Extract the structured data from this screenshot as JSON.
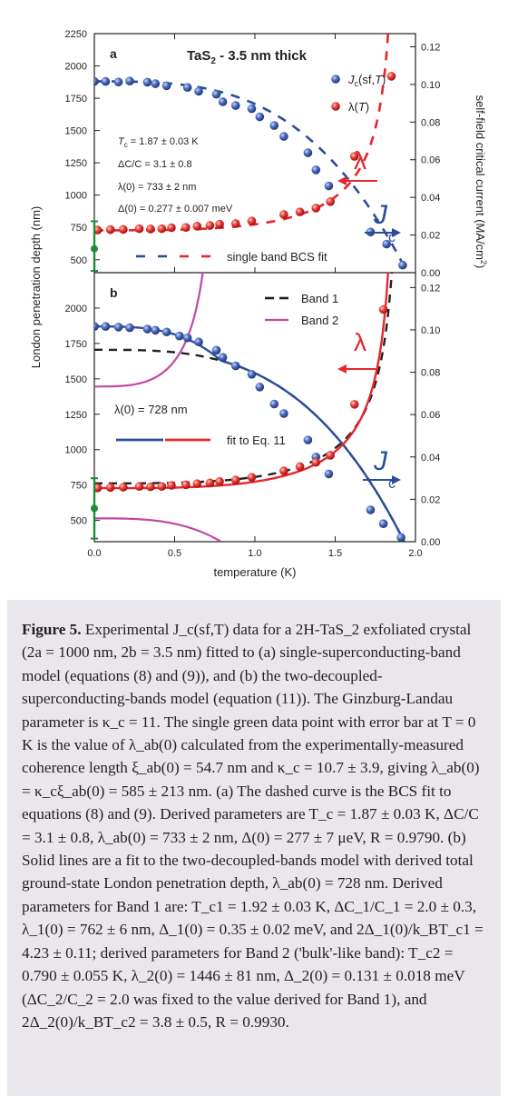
{
  "chart_data": [
    {
      "panel_label": "a",
      "type": "scatter",
      "title": "TaS2 - 3.5 nm thick",
      "title_base": "TaS",
      "title_sub": "2",
      "title_rest": " - 3.5 nm thick",
      "xlabel": "temperature (K)",
      "ylabel": "London penetration depth (nm)",
      "y2label": "self-field critical current (MA/cm2)",
      "y2label_base": "self-field critical current (MA/cm",
      "y2label_sup": "2",
      "y2label_end": ")",
      "xlim": [
        0,
        2.0
      ],
      "ylim": [
        400,
        2250
      ],
      "y2lim": [
        0,
        0.127
      ],
      "yticks": [
        "500",
        "750",
        "1000",
        "1250",
        "1500",
        "1750",
        "2000",
        "2250"
      ],
      "y2ticks": [
        "0.00",
        "0.02",
        "0.04",
        "0.06",
        "0.08",
        "0.10",
        "0.12"
      ],
      "series": [
        {
          "name": "Jc(sf,T)",
          "color": "#2a4d9b",
          "axis": "right",
          "x": [
            0.0,
            0.07,
            0.15,
            0.22,
            0.33,
            0.38,
            0.45,
            0.58,
            0.65,
            0.76,
            0.8,
            0.88,
            0.98,
            1.03,
            1.12,
            1.18,
            1.33,
            1.38,
            1.46,
            1.72,
            1.82,
            1.92
          ],
          "y": [
            0.1016,
            0.1016,
            0.1013,
            0.1018,
            0.1012,
            0.1004,
            0.0993,
            0.0984,
            0.0964,
            0.0948,
            0.0908,
            0.0888,
            0.0871,
            0.0828,
            0.0782,
            0.0724,
            0.0637,
            0.0546,
            0.0461,
            0.0216,
            0.0152,
            0.004
          ]
        },
        {
          "name": "λ(T)",
          "color": "#e8262b",
          "axis": "left",
          "x": [
            0.02,
            0.1,
            0.18,
            0.28,
            0.35,
            0.42,
            0.48,
            0.57,
            0.64,
            0.72,
            0.78,
            0.88,
            0.98,
            1.18,
            1.28,
            1.38,
            1.47,
            1.62,
            1.85
          ],
          "y": [
            730,
            733,
            735,
            740,
            738,
            740,
            748,
            750,
            760,
            765,
            775,
            780,
            800,
            850,
            870,
            900,
            950,
            1300,
            1920
          ]
        },
        {
          "name": "λ(0) from ξab(0)",
          "color": "#1f8a3a",
          "axis": "left",
          "x": [
            0.0
          ],
          "y": [
            585
          ],
          "error": [
            213
          ]
        }
      ],
      "fit_label": "single band BCS fit",
      "params": [
        "T_c = 1.87 ± 0.03 K",
        "ΔC/C = 3.1 ± 0.8",
        "λ(0) = 733 ± 2 nm",
        "Δ(0) = 0.277 ± 0.007 meV"
      ],
      "annotations": [
        "λ",
        "J",
        "c"
      ]
    },
    {
      "panel_label": "b",
      "type": "scatter",
      "xlabel": "temperature (K)",
      "xlim": [
        0,
        2.0
      ],
      "ylim": [
        350,
        2250
      ],
      "y2lim": [
        0,
        0.127
      ],
      "xticks": [
        "0.0",
        "0.5",
        "1.0",
        "1.5",
        "2.0"
      ],
      "yticks": [
        "500",
        "750",
        "1000",
        "1250",
        "1500",
        "1750",
        "2000"
      ],
      "y2ticks": [
        "0.00",
        "0.02",
        "0.04",
        "0.06",
        "0.08",
        "0.10",
        "0.12"
      ],
      "series": [
        {
          "name": "Jc(sf,T)",
          "color": "#2a4d9b",
          "axis": "right",
          "x": [
            0.0,
            0.07,
            0.15,
            0.22,
            0.33,
            0.38,
            0.45,
            0.53,
            0.58,
            0.65,
            0.76,
            0.8,
            0.88,
            0.98,
            1.03,
            1.12,
            1.18,
            1.33,
            1.38,
            1.46,
            1.72,
            1.8,
            1.91
          ],
          "y": [
            0.1016,
            0.1016,
            0.1013,
            0.101,
            0.1004,
            0.0998,
            0.099,
            0.0971,
            0.0962,
            0.0943,
            0.0904,
            0.087,
            0.083,
            0.079,
            0.073,
            0.065,
            0.0605,
            0.048,
            0.04,
            0.032,
            0.015,
            0.0085,
            0.002
          ]
        },
        {
          "name": "λ(T)",
          "color": "#e8262b",
          "axis": "left",
          "x": [
            0.02,
            0.1,
            0.18,
            0.28,
            0.35,
            0.42,
            0.48,
            0.57,
            0.64,
            0.72,
            0.78,
            0.88,
            0.98,
            1.18,
            1.28,
            1.38,
            1.47,
            1.62,
            1.8
          ],
          "y": [
            730,
            733,
            735,
            740,
            738,
            740,
            748,
            752,
            760,
            765,
            775,
            785,
            805,
            850,
            880,
            910,
            960,
            1320,
            1990
          ]
        },
        {
          "name": "λ(0) from ξab(0)",
          "color": "#1f8a3a",
          "axis": "left",
          "x": [
            0.0
          ],
          "y": [
            585
          ],
          "error": [
            213
          ]
        }
      ],
      "legend": [
        "Band 1",
        "Band 2"
      ],
      "fit_label": "fit to Eq. 11",
      "params": [
        "λ(0) = 728 nm"
      ],
      "annotations": [
        "λ",
        "J",
        "c"
      ]
    }
  ],
  "caption": {
    "lead": "Figure 5.",
    "text": " Experimental J_c(sf,T) data for a 2H-TaS_2 exfoliated crystal (2a = 1000 nm, 2b = 3.5 nm) fitted to (a) single-superconducting-band model (equations (8) and (9)), and (b) the two-decoupled-superconducting-bands model (equation (11)). The Ginzburg-Landau parameter is κ_c = 11. The single green data point with error bar at T = 0 K is the value of λ_ab(0) calculated from the experimentally-measured coherence length ξ_ab(0) = 54.7 nm and κ_c = 10.7 ± 3.9, giving λ_ab(0) = κ_cξ_ab(0) = 585 ± 213 nm. (a) The dashed curve is the BCS fit to equations (8) and (9). Derived parameters are T_c = 1.87 ± 0.03 K, ΔC/C = 3.1 ± 0.8, λ_ab(0) = 733 ± 2 nm, Δ(0) = 277 ± 7 μeV, R = 0.9790. (b) Solid lines are a fit to the two-decoupled-bands model with derived total ground-state London penetration depth, λ_ab(0) = 728 nm. Derived parameters for Band 1 are: T_c1 = 1.92 ± 0.03 K, ΔC_1/C_1 = 2.0 ± 0.3, λ_1(0) = 762 ± 6 nm, Δ_1(0) = 0.35 ± 0.02 meV, and 2Δ_1(0)/k_BT_c1 = 4.23 ± 0.11; derived parameters for Band 2 ('bulk'-like band): T_c2 = 0.790 ± 0.055 K, λ_2(0) = 1446 ± 81 nm, Δ_2(0) = 0.131 ± 0.018 meV (ΔC_2/C_2 = 2.0 was fixed to the value derived for Band 1), and 2Δ_2(0)/k_BT_c2 = 3.8 ± 0.5, R = 0.9930."
  },
  "colors": {
    "blue": "#2a4d9b",
    "red": "#e8262b",
    "green": "#1f8a3a",
    "magenta": "#c148a5",
    "caption_bg": "#e9e7ec"
  }
}
